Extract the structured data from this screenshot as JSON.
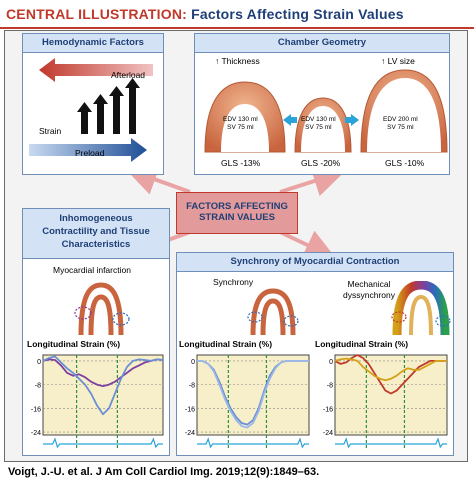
{
  "header": {
    "label": "CENTRAL ILLUSTRATION:",
    "title": "Factors Affecting Strain Values"
  },
  "center": {
    "line1": "FACTORS AFFECTING",
    "line2": "STRAIN VALUES"
  },
  "hemodynamic": {
    "title": "Hemodynamic Factors",
    "afterload": "Afterload",
    "preload": "Preload",
    "strain": "Strain"
  },
  "chamber": {
    "title": "Chamber Geometry",
    "thickness": "↑ Thickness",
    "lvsize": "↑ LV size",
    "hearts": [
      {
        "edv": "EDV 130 ml",
        "sv": "SV 75 ml",
        "gls": "GLS -13%"
      },
      {
        "edv": "EDV 130 ml",
        "sv": "SV 75 ml",
        "gls": "GLS -20%"
      },
      {
        "edv": "EDV 200 ml",
        "sv": "SV 75 ml",
        "gls": "GLS -10%"
      }
    ]
  },
  "inhomogeneous": {
    "title_l1": "Inhomogeneous",
    "title_l2": "Contractility and Tissue",
    "title_l3": "Characteristics",
    "subtitle": "Myocardial infarction",
    "plot_title": "Longitudinal Strain (%)"
  },
  "synchrony": {
    "title": "Synchrony of Myocardial Contraction",
    "left_label": "Synchrony",
    "right_label_l1": "Mechanical",
    "right_label_l2": "dyssynchrony",
    "plot_title_left": "Longitudinal Strain (%)",
    "plot_title_right": "Longitudinal Strain (%)"
  },
  "chart_data": [
    {
      "type": "line",
      "panel": "Myocardial infarction",
      "title": "Longitudinal Strain (%)",
      "yticks": [
        0,
        -8,
        -16,
        -24
      ],
      "ylim": [
        -25,
        2
      ],
      "x": [
        0,
        5,
        10,
        15,
        20,
        25,
        30,
        35,
        40,
        45,
        50,
        55,
        60,
        65,
        70,
        75,
        80,
        85,
        90,
        95,
        100
      ],
      "series": [
        {
          "color": "#7d3fa0",
          "values": [
            0,
            0.5,
            0.3,
            -1.5,
            -4,
            -5,
            -4.5,
            -5.5,
            -7,
            -8,
            -8.5,
            -8,
            -7,
            -5.5,
            -4,
            -2.5,
            -1.5,
            -0.5,
            0,
            0.5,
            0.3
          ]
        },
        {
          "color": "#6a8fd4",
          "values": [
            0,
            1,
            1.5,
            -0.5,
            -2.5,
            -4,
            -6,
            -8,
            -11,
            -15,
            -18,
            -16,
            -11,
            -6,
            -2,
            0,
            0.5,
            0.3,
            0,
            0.5,
            0.3
          ]
        }
      ]
    },
    {
      "type": "line",
      "panel": "Synchrony",
      "title": "Longitudinal Strain (%)",
      "yticks": [
        0,
        -8,
        -16,
        -24
      ],
      "ylim": [
        -25,
        2
      ],
      "x": [
        0,
        5,
        10,
        15,
        20,
        25,
        30,
        35,
        40,
        45,
        50,
        55,
        60,
        65,
        70,
        75,
        80,
        85,
        90,
        95,
        100
      ],
      "series": [
        {
          "color": "#6a8fd4",
          "values": [
            0,
            0,
            -1,
            -3,
            -7,
            -12,
            -16,
            -19,
            -21,
            -21.5,
            -20,
            -16,
            -10,
            -5,
            -2,
            -0.5,
            0,
            0,
            0,
            0,
            0
          ]
        },
        {
          "color": "#9bb8e8",
          "values": [
            0,
            0,
            -1,
            -3.5,
            -8,
            -13,
            -17,
            -20,
            -22,
            -22.5,
            -21,
            -17,
            -11,
            -6,
            -2.5,
            -0.5,
            0,
            0,
            0,
            0,
            0
          ]
        }
      ]
    },
    {
      "type": "line",
      "panel": "Mechanical dyssynchrony",
      "title": "Longitudinal Strain (%)",
      "yticks": [
        0,
        -8,
        -16,
        -24
      ],
      "ylim": [
        -25,
        2
      ],
      "x": [
        0,
        5,
        10,
        15,
        20,
        25,
        30,
        35,
        40,
        45,
        50,
        55,
        60,
        65,
        70,
        75,
        80,
        85,
        90,
        95,
        100
      ],
      "series": [
        {
          "color": "#c0392b",
          "values": [
            0,
            -1,
            -0.5,
            1,
            2,
            1,
            -1,
            -4,
            -7,
            -10,
            -11,
            -10,
            -8,
            -6,
            -4,
            -2,
            -1,
            0,
            0,
            0,
            0
          ]
        },
        {
          "color": "#d4a017",
          "values": [
            0,
            0.5,
            0.8,
            0.5,
            0,
            -2,
            -3.5,
            -5,
            -6,
            -6.5,
            -6,
            -5,
            -3.5,
            -2.5,
            -3,
            -3,
            -2,
            -1,
            0,
            0,
            0
          ]
        }
      ]
    }
  ],
  "citation": "Voigt, J.-U. et al. J Am Coll Cardiol Img. 2019;12(9):1849–63."
}
